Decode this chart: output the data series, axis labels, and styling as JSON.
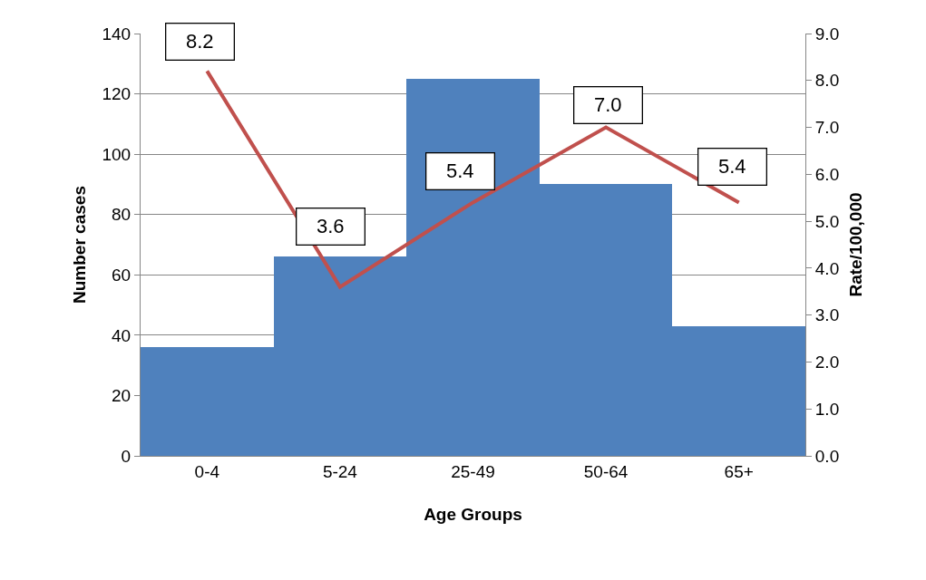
{
  "chart_data": {
    "type": "bar",
    "xlabel": "Age Groups",
    "ylabel": "Number cases",
    "y2label": "Rate/100,000",
    "categories": [
      "0-4",
      "5-24",
      "25-49",
      "50-64",
      "65+"
    ],
    "series": [
      {
        "color": "#4f81bd",
        "values": [
          36,
          66,
          125,
          90,
          43
        ]
      },
      {
        "type": "line",
        "axis": "y2",
        "color": "#c0504d",
        "values": [
          8.2,
          3.6,
          5.4,
          7.0,
          5.4
        ],
        "value_labels": [
          "8.2",
          "3.6",
          "5.4",
          "7.0",
          "5.4"
        ],
        "marker": "none",
        "line_style": "solid"
      }
    ],
    "ylim": [
      0,
      140
    ],
    "yticks": [
      0,
      20,
      40,
      60,
      80,
      100,
      120,
      140
    ],
    "y2lim": [
      0,
      9
    ],
    "y2ticks": [
      {
        "value": 0,
        "label": "0.0"
      },
      {
        "value": 1,
        "label": "1.0"
      },
      {
        "value": 2,
        "label": "2.0"
      },
      {
        "value": 3,
        "label": "3.0"
      },
      {
        "value": 4,
        "label": "4.0"
      },
      {
        "value": 5,
        "label": "5.0"
      },
      {
        "value": 6,
        "label": "6.0"
      },
      {
        "value": 7,
        "label": "7.0"
      },
      {
        "value": 8,
        "label": "8.0"
      },
      {
        "value": 9,
        "label": "9.0"
      }
    ],
    "grid": "y",
    "legend": false
  }
}
